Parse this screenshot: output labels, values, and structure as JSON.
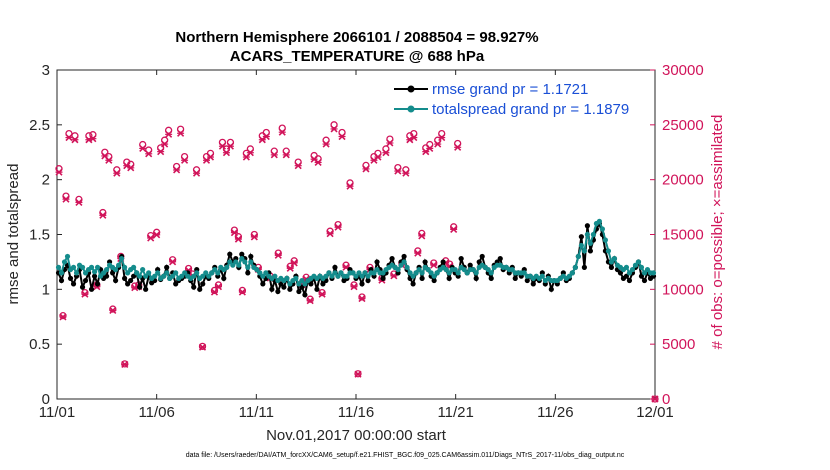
{
  "chart_data": {
    "type": "line",
    "title_line1": "Northern Hemisphere 2066101 / 2088504 = 98.927%",
    "title_line2": "ACARS_TEMPERATURE @ 688 hPa",
    "xlabel": "Nov.01,2017 00:00:00 start",
    "ylabel_left": "rmse and totalspread",
    "ylabel_right": "# of obs: o=possible; ×=assimilated",
    "footer": "data file: /Users/raeder/DAI/ATM_forcXX/CAM6_setup/f.e21.FHIST_BGC.f09_025.CAM6assim.011/Diags_NTrS_2017-11/obs_diag_output.nc",
    "x_ticks": [
      "11/01",
      "11/06",
      "11/11",
      "11/16",
      "11/21",
      "11/26",
      "12/01"
    ],
    "xlim": [
      0,
      30
    ],
    "y_left_ticks": [
      "0",
      "0.5",
      "1",
      "1.5",
      "2",
      "2.5",
      "3"
    ],
    "ylim_left": [
      0,
      3
    ],
    "y_right_ticks": [
      "0",
      "5000",
      "10000",
      "15000",
      "20000",
      "25000",
      "30000"
    ],
    "ylim_right": [
      0,
      30000
    ],
    "colors": {
      "rmse": "#000000",
      "spread": "#148c8c",
      "obs": "#d1145a",
      "legend_text": "#1a4fd6",
      "right_axis": "#d1145a"
    },
    "series": [
      {
        "name": "rmse grand pr = 1.1721",
        "key": "rmse",
        "values": [
          1.15,
          1.08,
          1.18,
          1.22,
          1.1,
          1.05,
          1.12,
          1.18,
          1.02,
          1.08,
          1.15,
          1.0,
          1.12,
          1.05,
          1.18,
          1.1,
          1.12,
          1.25,
          1.15,
          1.08,
          1.2,
          1.3,
          1.1,
          1.05,
          1.08,
          1.12,
          1.15,
          1.02,
          1.1,
          1.0,
          1.12,
          1.06,
          1.08,
          1.18,
          1.09,
          1.12,
          1.2,
          1.1,
          1.15,
          1.05,
          1.08,
          1.1,
          1.12,
          1.15,
          1.08,
          1.02,
          1.18,
          1.0,
          1.05,
          1.12,
          1.1,
          1.15,
          1.2,
          1.12,
          1.18,
          1.1,
          1.22,
          1.32,
          1.25,
          1.28,
          1.2,
          1.32,
          1.28,
          1.15,
          1.3,
          1.22,
          1.18,
          1.12,
          1.05,
          1.1,
          1.15,
          1.0,
          1.08,
          0.98,
          1.05,
          1.02,
          1.1,
          1.0,
          1.05,
          1.12,
          0.98,
          1.02,
          0.95,
          1.08,
          1.05,
          1.1,
          1.0,
          1.12,
          1.05,
          1.08,
          1.15,
          1.1,
          1.2,
          1.12,
          1.15,
          1.08,
          1.1,
          1.18,
          1.15,
          1.1,
          1.12,
          1.05,
          1.15,
          1.08,
          1.18,
          1.12,
          1.25,
          1.18,
          1.1,
          1.15,
          1.22,
          1.28,
          1.2,
          1.15,
          1.25,
          1.3,
          1.18,
          1.1,
          1.05,
          1.15,
          1.2,
          1.1,
          1.25,
          1.18,
          1.12,
          1.08,
          1.15,
          1.2,
          1.25,
          1.18,
          1.1,
          1.2,
          1.15,
          1.12,
          1.28,
          1.2,
          1.15,
          1.22,
          1.18,
          1.1,
          1.25,
          1.3,
          1.2,
          1.15,
          1.1,
          1.22,
          1.25,
          1.28,
          1.18,
          1.2,
          1.15,
          1.2,
          1.1,
          1.15,
          1.12,
          1.18,
          1.08,
          1.12,
          1.05,
          1.1,
          1.08,
          1.15,
          1.05,
          1.12,
          1.0,
          1.08,
          1.05,
          1.1,
          1.15,
          1.08,
          1.1,
          1.15,
          1.2,
          1.3,
          1.48,
          1.2,
          1.58,
          1.35,
          1.45,
          1.55,
          1.6,
          1.5,
          1.35,
          1.25,
          1.2,
          1.28,
          1.18,
          1.15,
          1.1,
          1.12,
          1.08,
          1.15,
          1.2,
          1.25,
          1.12,
          1.08,
          1.15,
          1.1,
          1.12
        ]
      },
      {
        "name": "totalspread grand pr = 1.1879",
        "key": "spread",
        "values": [
          1.2,
          1.15,
          1.25,
          1.3,
          1.18,
          1.2,
          1.15,
          1.22,
          1.2,
          1.15,
          1.18,
          1.2,
          1.16,
          1.2,
          1.12,
          1.15,
          1.18,
          1.22,
          1.2,
          1.18,
          1.22,
          1.28,
          1.2,
          1.15,
          1.18,
          1.2,
          1.15,
          1.12,
          1.18,
          1.12,
          1.15,
          1.1,
          1.12,
          1.15,
          1.1,
          1.12,
          1.15,
          1.1,
          1.12,
          1.15,
          1.1,
          1.12,
          1.15,
          1.12,
          1.1,
          1.12,
          1.15,
          1.1,
          1.12,
          1.15,
          1.12,
          1.15,
          1.18,
          1.15,
          1.2,
          1.18,
          1.2,
          1.25,
          1.22,
          1.25,
          1.22,
          1.28,
          1.25,
          1.2,
          1.25,
          1.2,
          1.18,
          1.15,
          1.12,
          1.15,
          1.12,
          1.1,
          1.12,
          1.08,
          1.1,
          1.08,
          1.1,
          1.05,
          1.08,
          1.1,
          1.05,
          1.08,
          1.05,
          1.08,
          1.1,
          1.12,
          1.1,
          1.12,
          1.1,
          1.12,
          1.15,
          1.12,
          1.15,
          1.12,
          1.15,
          1.12,
          1.12,
          1.15,
          1.15,
          1.12,
          1.15,
          1.12,
          1.15,
          1.12,
          1.15,
          1.15,
          1.18,
          1.15,
          1.15,
          1.18,
          1.2,
          1.22,
          1.2,
          1.18,
          1.22,
          1.25,
          1.2,
          1.15,
          1.12,
          1.15,
          1.18,
          1.15,
          1.2,
          1.18,
          1.15,
          1.12,
          1.15,
          1.18,
          1.2,
          1.18,
          1.15,
          1.18,
          1.18,
          1.15,
          1.2,
          1.18,
          1.15,
          1.18,
          1.18,
          1.15,
          1.2,
          1.22,
          1.2,
          1.18,
          1.15,
          1.2,
          1.22,
          1.22,
          1.2,
          1.2,
          1.18,
          1.18,
          1.15,
          1.15,
          1.15,
          1.15,
          1.12,
          1.12,
          1.1,
          1.12,
          1.1,
          1.12,
          1.08,
          1.1,
          1.08,
          1.08,
          1.08,
          1.1,
          1.12,
          1.1,
          1.12,
          1.15,
          1.2,
          1.3,
          1.4,
          1.35,
          1.5,
          1.42,
          1.5,
          1.6,
          1.62,
          1.55,
          1.45,
          1.35,
          1.25,
          1.28,
          1.22,
          1.2,
          1.18,
          1.2,
          1.15,
          1.18,
          1.22,
          1.25,
          1.2,
          1.15,
          1.18,
          1.15,
          1.15
        ]
      },
      {
        "name": "# of obs possible",
        "key": "obs_possible",
        "values": [
          21000,
          7600,
          18500,
          24200,
          24000,
          18200,
          9700,
          24000,
          24100,
          10400,
          17000,
          22500,
          22100,
          8200,
          20900,
          13000,
          3200,
          21600,
          21400,
          10300,
          10400,
          23200,
          22700,
          14900,
          15200,
          22900,
          23600,
          24500,
          12700,
          21200,
          24600,
          22100,
          11900,
          11400,
          20900,
          4800,
          22100,
          22400,
          9900,
          10400,
          23400,
          22800,
          23400,
          15400,
          14800,
          9900,
          22400,
          22800,
          15000,
          12000,
          24000,
          24300,
          11200,
          22600,
          13300,
          24700,
          22600,
          12100,
          12600,
          21600,
          10600,
          11100,
          9100,
          22200,
          21900,
          9700,
          23600,
          15300,
          25000,
          15900,
          24300,
          12200,
          19700,
          10400,
          2300,
          9300,
          21300,
          12000,
          22100,
          22400,
          11000,
          22800,
          23700,
          11400,
          21100,
          12400,
          20900,
          24000,
          24200,
          13500,
          15100,
          22900,
          23200,
          12400,
          23600,
          24200,
          12600,
          12300,
          15700,
          23300,
          0
        ],
        "x": [
          0.1,
          0.3,
          0.45,
          0.6,
          0.9,
          1.1,
          1.4,
          1.6,
          1.8,
          2.0,
          2.3,
          2.4,
          2.6,
          2.8,
          3.0,
          3.2,
          3.4,
          3.5,
          3.7,
          3.9,
          4.1,
          4.3,
          4.6,
          4.7,
          5.0,
          5.2,
          5.4,
          5.6,
          5.8,
          6.0,
          6.2,
          6.4,
          6.6,
          6.8,
          7.0,
          7.3,
          7.5,
          7.7,
          7.9,
          8.1,
          8.3,
          8.5,
          8.7,
          8.9,
          9.1,
          9.3,
          9.5,
          9.7,
          9.9,
          10.1,
          10.3,
          10.5,
          10.7,
          10.9,
          11.1,
          11.3,
          11.5,
          11.7,
          11.9,
          12.1,
          12.3,
          12.5,
          12.7,
          12.9,
          13.1,
          13.3,
          13.5,
          13.7,
          13.9,
          14.1,
          14.3,
          14.5,
          14.7,
          14.9,
          15.1,
          15.3,
          15.5,
          15.7,
          15.9,
          16.1,
          16.3,
          16.5,
          16.7,
          16.9,
          17.1,
          17.3,
          17.5,
          17.7,
          17.9,
          18.1,
          18.3,
          18.5,
          18.7,
          18.9,
          19.1,
          19.3,
          19.5,
          19.7,
          19.9,
          20.1,
          30.0
        ]
      }
    ]
  },
  "legend": {
    "rmse": "rmse grand pr = 1.1721",
    "spread": "totalspread grand pr = 1.1879"
  }
}
